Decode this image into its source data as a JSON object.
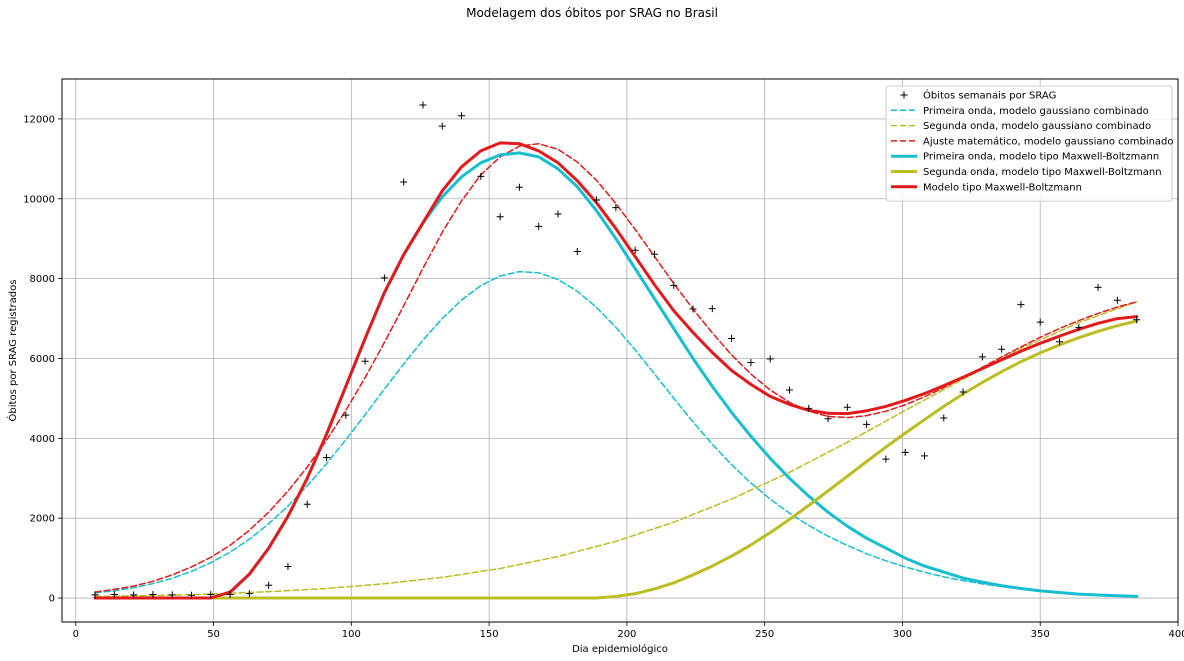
{
  "chart_data": {
    "type": "line",
    "title": "Modelagem dos óbitos por SRAG no Brasil",
    "xlabel": "Dia epidemiológico",
    "ylabel": "Óbitos por SRAG registrados",
    "xlim": [
      -5,
      400
    ],
    "ylim": [
      -600,
      13000
    ],
    "xticks": [
      0,
      50,
      100,
      150,
      200,
      250,
      300,
      350,
      400
    ],
    "yticks": [
      0,
      2000,
      4000,
      6000,
      8000,
      10000,
      12000
    ],
    "grid": true,
    "legend_position": "top-right",
    "observed": {
      "name": "Óbitos semanais por SRAG",
      "color": "#000000",
      "marker": "+",
      "x": [
        7,
        14,
        21,
        28,
        35,
        42,
        49,
        56,
        63,
        70,
        77,
        84,
        91,
        98,
        105,
        112,
        119,
        126,
        133,
        140,
        147,
        154,
        161,
        168,
        175,
        182,
        189,
        196,
        203,
        210,
        217,
        224,
        231,
        238,
        245,
        252,
        259,
        266,
        273,
        280,
        287,
        294,
        301,
        308,
        315,
        322,
        329,
        336,
        343,
        350,
        357,
        364,
        371,
        378,
        385
      ],
      "y": [
        80,
        90,
        80,
        90,
        80,
        70,
        90,
        90,
        110,
        320,
        790,
        2350,
        3520,
        4580,
        5930,
        8020,
        10420,
        12350,
        11820,
        12080,
        10560,
        9550,
        10290,
        9310,
        9620,
        8680,
        9970,
        9780,
        8710,
        8610,
        7830,
        7240,
        7250,
        6500,
        5900,
        5990,
        5210,
        4750,
        4490,
        4780,
        4350,
        3480,
        3650,
        3560,
        4510,
        5160,
        6040,
        6230,
        7350,
        6910,
        6420,
        6780,
        7780,
        7460,
        6970
      ]
    },
    "series": [
      {
        "name": "Primeira onda, modelo gaussiano combinado",
        "color": "#17becf",
        "style": "dashed",
        "width": 1.5,
        "x": [
          7,
          14,
          21,
          28,
          35,
          42,
          49,
          56,
          63,
          70,
          77,
          84,
          91,
          98,
          105,
          112,
          119,
          126,
          133,
          140,
          147,
          154,
          161,
          168,
          175,
          182,
          189,
          196,
          203,
          210,
          217,
          224,
          231,
          238,
          245,
          252,
          259,
          266,
          273,
          280,
          287,
          294,
          301,
          308,
          315,
          322,
          329,
          336,
          343,
          350,
          357,
          364,
          371,
          378,
          385
        ],
        "y": [
          127,
          183,
          259,
          361,
          495,
          667,
          884,
          1151,
          1475,
          1860,
          2304,
          2808,
          3364,
          3964,
          4592,
          5232,
          5862,
          6461,
          7002,
          7465,
          7825,
          8065,
          8175,
          8145,
          7979,
          7684,
          7276,
          6778,
          6215,
          5616,
          5007,
          4412,
          3853,
          3339,
          2882,
          2478,
          2125,
          1817,
          1549,
          1315,
          1111,
          934,
          780,
          647,
          533,
          436,
          354,
          286,
          229,
          182,
          144,
          113,
          88,
          68,
          52
        ]
      },
      {
        "name": "Segunda onda, modelo gaussiano combinado",
        "color": "#bcbd22",
        "style": "dashed",
        "width": 1.5,
        "x": [
          7,
          28,
          49,
          70,
          91,
          112,
          133,
          154,
          175,
          196,
          217,
          238,
          259,
          280,
          301,
          322,
          343,
          364,
          385
        ],
        "y": [
          40,
          60,
          100,
          160,
          240,
          360,
          520,
          740,
          1040,
          1420,
          1900,
          2480,
          3150,
          3900,
          4700,
          5480,
          6250,
          6900,
          7420
        ]
      },
      {
        "name": "Ajuste matemático, modelo gaussiano combinado",
        "color": "#e31a1c",
        "style": "dashed",
        "width": 1.5,
        "x": [
          7,
          14,
          21,
          28,
          35,
          42,
          49,
          56,
          63,
          70,
          77,
          84,
          91,
          98,
          105,
          112,
          119,
          126,
          133,
          140,
          147,
          154,
          161,
          168,
          175,
          182,
          189,
          196,
          203,
          210,
          217,
          224,
          231,
          238,
          245,
          252,
          259,
          266,
          273,
          280,
          287,
          294,
          301,
          308,
          315,
          322,
          329,
          336,
          343,
          350,
          357,
          364,
          371,
          378,
          385
        ],
        "y": [
          150,
          220,
          300,
          420,
          580,
          780,
          1020,
          1320,
          1700,
          2150,
          2680,
          3280,
          3950,
          4700,
          5520,
          6400,
          7320,
          8260,
          9160,
          9950,
          10600,
          11050,
          11320,
          11380,
          11240,
          10920,
          10460,
          9880,
          9230,
          8560,
          7880,
          7240,
          6640,
          6090,
          5610,
          5210,
          4900,
          4680,
          4550,
          4520,
          4570,
          4680,
          4840,
          5040,
          5270,
          5520,
          5780,
          6040,
          6290,
          6530,
          6750,
          6950,
          7130,
          7290,
          7420
        ]
      },
      {
        "name": "Primeira onda, modelo tipo Maxwell-Boltzmann",
        "color": "#17becf",
        "style": "solid",
        "width": 3,
        "x": [
          7,
          14,
          21,
          28,
          35,
          42,
          49,
          56,
          63,
          70,
          77,
          84,
          91,
          98,
          105,
          112,
          119,
          126,
          133,
          140,
          147,
          154,
          161,
          168,
          175,
          182,
          189,
          196,
          203,
          210,
          217,
          224,
          231,
          238,
          245,
          252,
          259,
          266,
          273,
          280,
          287,
          294,
          301,
          308,
          315,
          322,
          329,
          336,
          343,
          350,
          357,
          364,
          371,
          378,
          385
        ],
        "y": [
          0,
          0,
          0,
          0,
          0,
          0,
          0,
          150,
          600,
          1250,
          2050,
          3000,
          4100,
          5300,
          6500,
          7650,
          8600,
          9400,
          10050,
          10550,
          10900,
          11100,
          11150,
          11050,
          10750,
          10300,
          9700,
          9000,
          8250,
          7500,
          6750,
          6000,
          5300,
          4650,
          4050,
          3500,
          3000,
          2550,
          2150,
          1800,
          1500,
          1250,
          1000,
          800,
          650,
          500,
          400,
          310,
          240,
          180,
          140,
          100,
          75,
          55,
          40
        ]
      },
      {
        "name": "Segunda onda, modelo tipo Maxwell-Boltzmann",
        "color": "#bcbd22",
        "style": "solid",
        "width": 3,
        "x": [
          7,
          49,
          91,
          133,
          175,
          189,
          196,
          203,
          210,
          217,
          224,
          231,
          238,
          245,
          252,
          259,
          266,
          273,
          280,
          287,
          294,
          301,
          308,
          315,
          322,
          329,
          336,
          343,
          350,
          357,
          364,
          371,
          378,
          385
        ],
        "y": [
          0,
          0,
          0,
          0,
          0,
          0,
          40,
          110,
          230,
          380,
          580,
          800,
          1050,
          1330,
          1640,
          1970,
          2320,
          2680,
          3050,
          3420,
          3780,
          4130,
          4470,
          4800,
          5110,
          5400,
          5670,
          5920,
          6140,
          6340,
          6520,
          6680,
          6820,
          6940
        ]
      },
      {
        "name": "Modelo tipo Maxwell-Boltzmann",
        "color": "#e31a1c",
        "style": "solid",
        "width": 3,
        "x": [
          7,
          14,
          21,
          28,
          35,
          42,
          49,
          56,
          63,
          70,
          77,
          84,
          91,
          98,
          105,
          112,
          119,
          126,
          133,
          140,
          147,
          154,
          161,
          168,
          175,
          182,
          189,
          196,
          203,
          210,
          217,
          224,
          231,
          238,
          245,
          252,
          259,
          266,
          273,
          280,
          287,
          294,
          301,
          308,
          315,
          322,
          329,
          336,
          343,
          350,
          357,
          364,
          371,
          378,
          385
        ],
        "y": [
          0,
          0,
          0,
          0,
          0,
          0,
          0,
          150,
          600,
          1250,
          2050,
          3000,
          4100,
          5300,
          6500,
          7650,
          8600,
          9400,
          10200,
          10800,
          11200,
          11400,
          11380,
          11200,
          10900,
          10450,
          9900,
          9250,
          8550,
          7850,
          7200,
          6650,
          6150,
          5700,
          5350,
          5050,
          4850,
          4700,
          4630,
          4620,
          4690,
          4800,
          4950,
          5120,
          5320,
          5530,
          5750,
          5970,
          6180,
          6380,
          6560,
          6730,
          6880,
          7000,
          7050
        ]
      }
    ]
  }
}
